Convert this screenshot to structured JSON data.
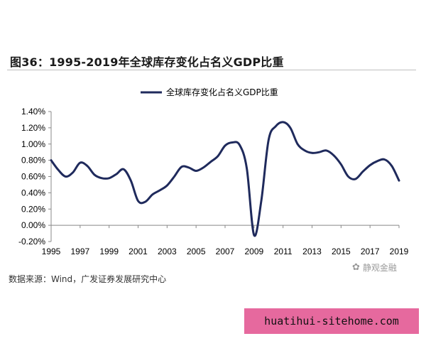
{
  "figure": {
    "title": "图36：1995-2019年全球库存变化占名义GDP比重",
    "source": "数据来源：Wind，广发证券发展研究中心",
    "watermark": "静观金融",
    "site": "huatihui-sitehome.com"
  },
  "colors": {
    "line": "#1f2a5c",
    "axis": "#888888",
    "tick_text": "#000000",
    "banner": "#e6699e"
  },
  "chart_data": {
    "type": "line",
    "title": "",
    "xlabel": "",
    "ylabel": "",
    "series": [
      {
        "name": "全球库存变化占名义GDP比重",
        "x": [
          1995,
          1995.5,
          1996,
          1996.5,
          1997,
          1997.5,
          1998,
          1998.5,
          1999,
          1999.5,
          2000,
          2000.5,
          2001,
          2001.5,
          2002,
          2002.5,
          2003,
          2003.5,
          2004,
          2004.5,
          2005,
          2005.5,
          2006,
          2006.5,
          2007,
          2007.5,
          2008,
          2008.5,
          2009,
          2009.5,
          2010,
          2010.5,
          2011,
          2011.5,
          2012,
          2012.5,
          2013,
          2013.5,
          2014,
          2014.5,
          2015,
          2015.5,
          2016,
          2016.5,
          2017,
          2017.5,
          2018,
          2018.5,
          2019
        ],
        "values": [
          0.8,
          0.68,
          0.6,
          0.65,
          0.77,
          0.73,
          0.62,
          0.58,
          0.58,
          0.63,
          0.69,
          0.55,
          0.3,
          0.29,
          0.38,
          0.43,
          0.49,
          0.6,
          0.72,
          0.71,
          0.67,
          0.71,
          0.78,
          0.85,
          0.98,
          1.02,
          0.99,
          0.7,
          -0.12,
          0.3,
          1.05,
          1.22,
          1.27,
          1.2,
          1.0,
          0.92,
          0.89,
          0.9,
          0.92,
          0.86,
          0.75,
          0.6,
          0.57,
          0.66,
          0.74,
          0.79,
          0.81,
          0.73,
          0.55
        ]
      }
    ],
    "ylim": [
      -0.2,
      1.4
    ],
    "yticks": [
      -0.2,
      0.0,
      0.2,
      0.4,
      0.6,
      0.8,
      1.0,
      1.2,
      1.4
    ],
    "ytick_labels": [
      "-0.20%",
      "0.00%",
      "0.20%",
      "0.40%",
      "0.60%",
      "0.80%",
      "1.00%",
      "1.20%",
      "1.40%"
    ],
    "xlim": [
      1995,
      2019
    ],
    "xticks": [
      1995,
      1997,
      1999,
      2001,
      2003,
      2005,
      2007,
      2009,
      2011,
      2013,
      2015,
      2017,
      2019
    ],
    "xtick_labels": [
      "1995",
      "1997",
      "1999",
      "2001",
      "2003",
      "2005",
      "2007",
      "2009",
      "2011",
      "2013",
      "2015",
      "2017",
      "2019"
    ],
    "grid": false,
    "legend": "top-center"
  }
}
